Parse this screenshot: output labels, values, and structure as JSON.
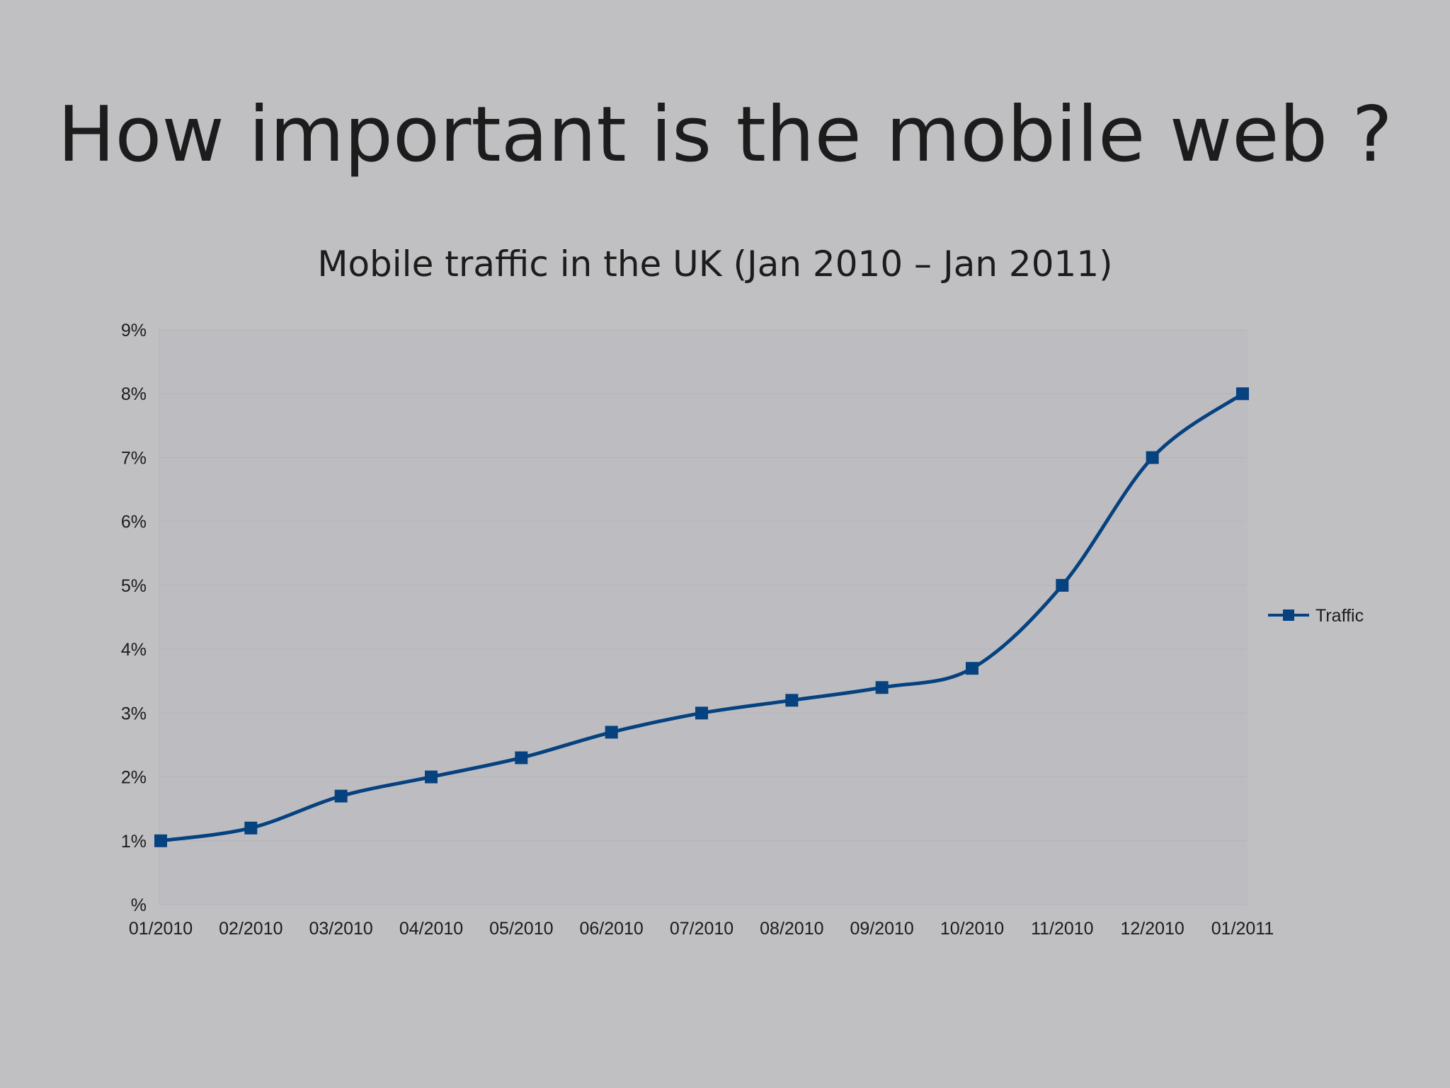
{
  "slide": {
    "title": "How important is the mobile web ?"
  },
  "colors": {
    "background": "#c0c0c2",
    "series": "#05427f",
    "text": "#1c1c1c",
    "grid": "#b4b4b8"
  },
  "chart_data": {
    "type": "line",
    "title": "Mobile traffic in the UK (Jan 2010 – Jan 2011)",
    "xlabel": "",
    "ylabel": "",
    "categories": [
      "01/2010",
      "02/2010",
      "03/2010",
      "04/2010",
      "05/2010",
      "06/2010",
      "07/2010",
      "08/2010",
      "09/2010",
      "10/2010",
      "11/2010",
      "12/2010",
      "01/2011"
    ],
    "series": [
      {
        "name": "Traffic",
        "values": [
          1.0,
          1.2,
          1.7,
          2.0,
          2.3,
          2.7,
          3.0,
          3.2,
          3.4,
          3.7,
          5.0,
          7.0,
          8.0
        ],
        "marker": "square",
        "smooth": true
      }
    ],
    "ylim": [
      0,
      9
    ],
    "yticks": [
      0,
      1,
      2,
      3,
      4,
      5,
      6,
      7,
      8,
      9
    ],
    "ytick_labels": [
      "%",
      "1%",
      "2%",
      "3%",
      "4%",
      "5%",
      "6%",
      "7%",
      "8%",
      "9%"
    ],
    "grid": "horizontal",
    "legend": "right"
  }
}
